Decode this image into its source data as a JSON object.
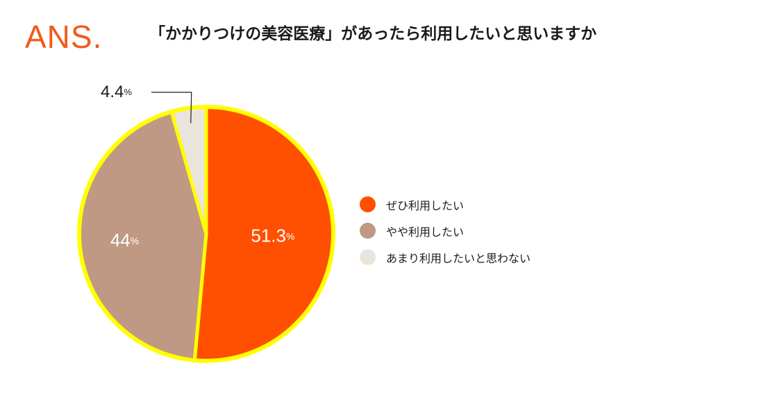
{
  "logo": "ANS.",
  "title": "「かかりつけの美容医療」があったら利用したいと思いますか",
  "colors": {
    "outline": "#ffff00",
    "text_dark": "#1a1a1a",
    "label_light": "#ffffff"
  },
  "chart_data": {
    "type": "pie",
    "title": "「かかりつけの美容医療」があったら利用したいと思いますか",
    "unit": "%",
    "slices": [
      {
        "label": "ぜひ利用したい",
        "value": 51.3,
        "display": "51.3",
        "color": "#ff4f00"
      },
      {
        "label": "やや利用したい",
        "value": 44,
        "display": "44",
        "color": "#bf9984"
      },
      {
        "label": "あまり利用したいと思わない",
        "value": 4.4,
        "display": "4.4",
        "color": "#ebe4dd"
      }
    ],
    "legend_placement": "right"
  }
}
